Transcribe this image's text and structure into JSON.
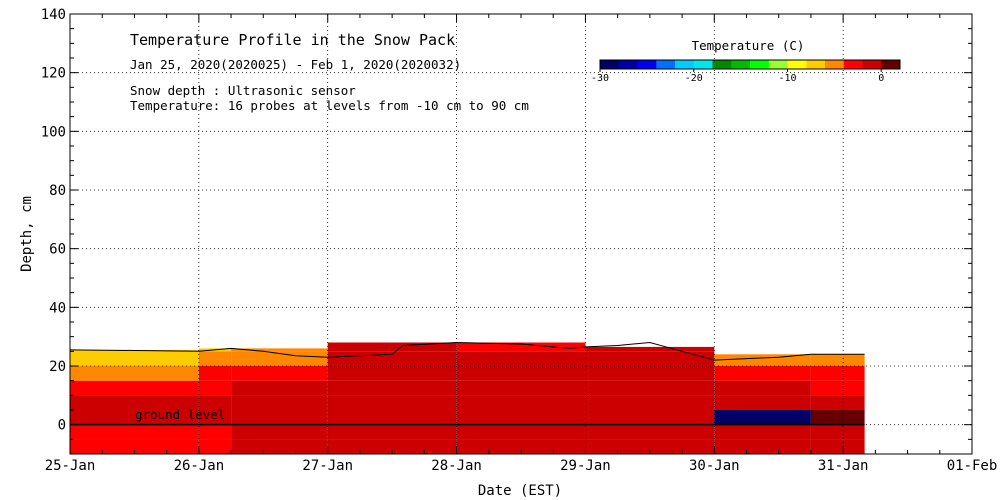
{
  "chart_data": {
    "type": "area",
    "title": "Temperature Profile in the Snow Pack",
    "date_range": "Jan 25, 2020(2020025) - Feb  1, 2020(2020032)",
    "notes": [
      "Snow depth : Ultrasonic sensor",
      "Temperature: 16 probes at levels from -10 cm to 90 cm"
    ],
    "xlabel": "Date (EST)",
    "ylabel": "Depth, cm",
    "x_ticks": [
      "25-Jan",
      "26-Jan",
      "27-Jan",
      "28-Jan",
      "29-Jan",
      "30-Jan",
      "31-Jan",
      "01-Feb"
    ],
    "y_ticks": [
      "0",
      "20",
      "40",
      "60",
      "80",
      "100",
      "120",
      "140"
    ],
    "xlim": [
      "2020-01-25",
      "2020-02-01"
    ],
    "ylim": [
      -10,
      140
    ],
    "grid": true,
    "annotation": "ground level",
    "colorbar": {
      "title": "Temperature (C)",
      "tick_labels": [
        "-30",
        "-20",
        "-10",
        "0"
      ],
      "range": [
        -30,
        2
      ],
      "colors": [
        "#000066",
        "#0000a8",
        "#0000ee",
        "#0070ff",
        "#00ccff",
        "#00e8e8",
        "#008800",
        "#00bb00",
        "#00ff00",
        "#99ff33",
        "#ffff00",
        "#ffcc00",
        "#ff8800",
        "#ff0000",
        "#cc0000",
        "#660000"
      ]
    },
    "snow_depth_series": {
      "name": "Snow depth",
      "units": "cm",
      "points": [
        [
          "2020-01-25T00:00",
          25.5
        ],
        [
          "2020-01-25T12:00",
          25.3
        ],
        [
          "2020-01-26T00:00",
          25.0
        ],
        [
          "2020-01-26T06:00",
          26.0
        ],
        [
          "2020-01-26T12:00",
          25.0
        ],
        [
          "2020-01-26T18:00",
          23.5
        ],
        [
          "2020-01-27T00:00",
          23.0
        ],
        [
          "2020-01-27T12:00",
          24.0
        ],
        [
          "2020-01-27T14:00",
          27.0
        ],
        [
          "2020-01-28T00:00",
          28.0
        ],
        [
          "2020-01-28T12:00",
          27.5
        ],
        [
          "2020-01-28T21:00",
          26.0
        ],
        [
          "2020-01-29T00:00",
          26.5
        ],
        [
          "2020-01-29T06:00",
          27.0
        ],
        [
          "2020-01-29T12:00",
          28.0
        ],
        [
          "2020-01-29T18:00",
          25.0
        ],
        [
          "2020-01-30T00:00",
          22.0
        ],
        [
          "2020-01-30T12:00",
          23.0
        ],
        [
          "2020-01-30T18:00",
          24.0
        ],
        [
          "2020-01-31T00:00",
          24.0
        ],
        [
          "2020-01-31T04:00",
          24.0
        ]
      ]
    },
    "temperature_field": {
      "probe_depths_cm": [
        -10,
        -5,
        0,
        5,
        10,
        15,
        20,
        25
      ],
      "points": [
        {
          "t": "2020-01-25T00:00",
          "temps_c": [
            -3,
            -3,
            -1,
            -1,
            -4,
            -5,
            -7,
            -8
          ]
        },
        {
          "t": "2020-01-26T00:00",
          "temps_c": [
            -3,
            -3,
            -1,
            -1,
            -3,
            -4,
            -6,
            -7
          ]
        },
        {
          "t": "2020-01-26T06:00",
          "temps_c": [
            -1,
            -1,
            -1,
            -1,
            -1,
            -3,
            -5,
            -6
          ]
        },
        {
          "t": "2020-01-27T00:00",
          "temps_c": [
            -1,
            -1,
            -1,
            -1,
            -1,
            -1,
            -1,
            -1
          ]
        },
        {
          "t": "2020-01-28T00:00",
          "temps_c": [
            -1,
            -1,
            -1,
            -1,
            -1,
            -1,
            -2,
            -3
          ]
        },
        {
          "t": "2020-01-29T00:00",
          "temps_c": [
            -1,
            -1,
            -1,
            -1,
            -1,
            -1,
            -1,
            -2
          ]
        },
        {
          "t": "2020-01-30T00:00",
          "temps_c": [
            -1,
            -1,
            -35,
            -2,
            -2,
            -3,
            -5,
            -7
          ]
        },
        {
          "t": "2020-01-30T18:00",
          "temps_c": [
            -1,
            -1,
            2,
            -2,
            -3,
            -4,
            -6,
            -8
          ]
        }
      ]
    }
  }
}
